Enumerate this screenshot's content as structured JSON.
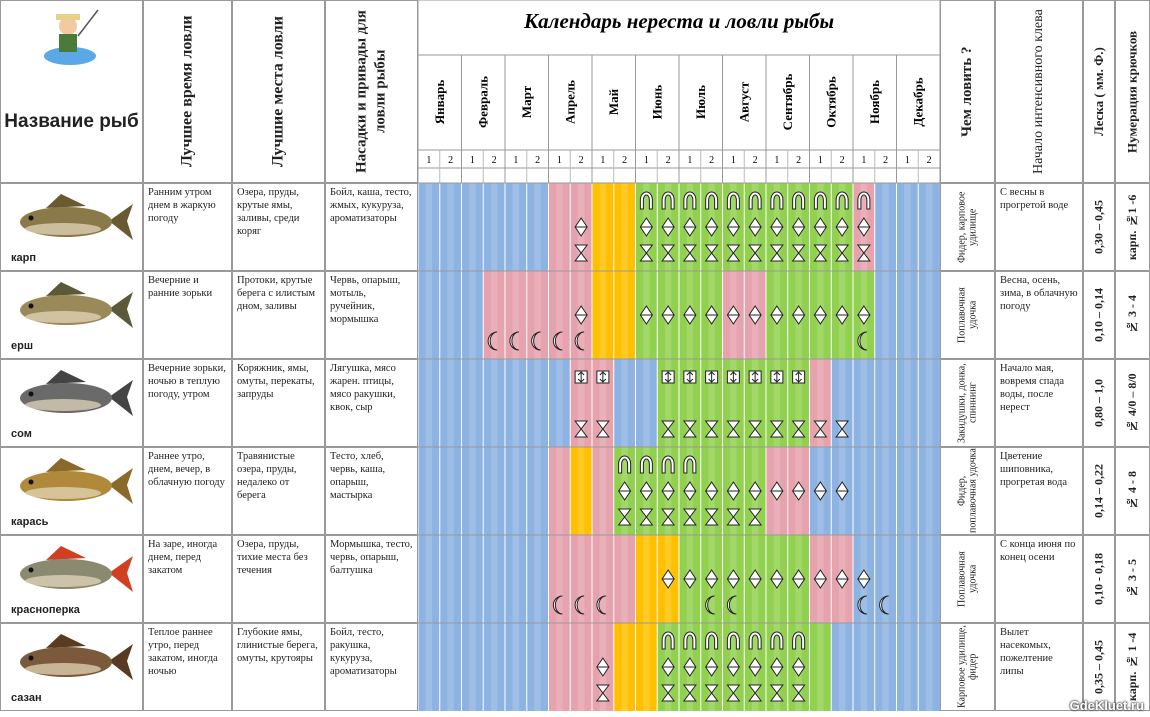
{
  "header": {
    "name_col": "Название рыб",
    "time_col": "Лучшее время ловли",
    "places_col": "Лучшие места ловли",
    "baits_col": "Насадки и привады для ловли рыбы",
    "title": "Календарь нереста и ловли рыбы",
    "months": [
      "Январь",
      "Февраль",
      "Март",
      "Апрель",
      "Май",
      "Июнь",
      "Июль",
      "Август",
      "Сентябрь",
      "Октябрь",
      "Ноябрь",
      "Декабрь"
    ],
    "halves": [
      "1",
      "2"
    ],
    "tackle_col": "Чем ловить ?",
    "start_col": "Начало интенсивного клева",
    "line_col": "Леска ( мм. Ф.)",
    "hooks_col": "Нумерация крючков"
  },
  "palette": {
    "b": "#8db3e2",
    "p": "#e6a3ad",
    "o": "#ffc000",
    "g": "#92d050"
  },
  "fish": [
    {
      "name": "карп",
      "time": "Ранним утром днем в жаркую погоду",
      "places": "Озера, пруды, крутые ямы, заливы, среди коряг",
      "baits": "Бойл, каша, тесто, жмых, кукуруза, ароматизаторы",
      "tackle": "Фидер, карповое удилище",
      "start": "С весны в прогретой воде",
      "line": "0,30 – 0,45",
      "hooks": "карп. №1 -6",
      "cells": "bbbbbbppooggggggggggpbbb",
      "icons": [
        "",
        "",
        "",
        "",
        "",
        "",
        "",
        "DH",
        "",
        "",
        "ADH",
        "ADH",
        "ADH",
        "ADH",
        "ADH",
        "ADH",
        "ADH",
        "ADH",
        "ADH",
        "ADH",
        "ADH",
        "",
        "",
        ""
      ]
    },
    {
      "name": "ерш",
      "time": "Вечерние и ранние зорьки",
      "places": "Протоки, крутые берега с илистым дном, заливы",
      "baits": "Червь, опарыш, мотыль, ручейник, мормышка",
      "tackle": "Поплавочная удочка",
      "start": "Весна, осень, зима, в облачную погоду",
      "line": "0,10 – 0,14",
      "hooks": "№ 3 - 4",
      "cells": "bbbpppppooggggppgggggbbb",
      "icons": [
        "",
        "",
        "",
        "C",
        "C",
        "C",
        "C",
        "DC",
        "",
        "",
        "D",
        "D",
        "D",
        "D",
        "D",
        "D",
        "D",
        "D",
        "D",
        "D",
        "DC",
        "",
        "",
        ""
      ]
    },
    {
      "name": "сом",
      "time": "Вечерние зорьки, ночью в теплую погоду, утром",
      "places": "Коряжник, ямы, омуты, перекаты, запруды",
      "baits": "Лягушка, мясо жарен. птицы, мясо ракушки, квок, сыр",
      "tackle": "Закидушки, донка, спиннинг",
      "start": "Начало мая, вовремя спада воды, после нерест",
      "line": "0,80 – 1,0",
      "hooks": "№ 4/0 – 8/0",
      "cells": "bbbbbbbppbbgggggggpbbbbb",
      "icons": [
        "",
        "",
        "",
        "",
        "",
        "",
        "",
        "RH",
        "RH",
        "",
        "",
        "RH",
        "RH",
        "RH",
        "RH",
        "RH",
        "RH",
        "RH",
        "H",
        "H",
        "",
        "",
        "",
        ""
      ]
    },
    {
      "name": "карась",
      "time": "Раннее утро, днем, вечер, в облачную погоду",
      "places": "Травянистые озера, пруды, недалеко от берега",
      "baits": "Тесто, хлеб, червь, каша, опарыш, мастырка",
      "tackle": "Фидер, поплавочная удочка",
      "start": "Цветение шиповника, прогретая вода",
      "line": "0,14 – 0,22",
      "hooks": "№ 4 - 8",
      "cells": "bbbbbbpopgggggggppbbbbbb",
      "icons": [
        "",
        "",
        "",
        "",
        "",
        "",
        "",
        "",
        "",
        "ADH",
        "ADH",
        "ADH",
        "ADH",
        "DH",
        "DH",
        "DH",
        "D",
        "D",
        "D",
        "D",
        "",
        "",
        "",
        ""
      ]
    },
    {
      "name": "красноперка",
      "time": "На заре, иногда днем, перед закатом",
      "places": "Озера, пруды, тихие места без течения",
      "baits": "Мормышка, тесто, червь, опарыш, балтушка",
      "tackle": "Поплавочная удочка",
      "start": "С конца июня по конец осени",
      "line": "0,10 - 0,18",
      "hooks": "№ 3 - 5",
      "cells": "bbbbbbppppooggggggppbbbb",
      "icons": [
        "",
        "",
        "",
        "",
        "",
        "",
        "C",
        "C",
        "C",
        "",
        "",
        "D",
        "D",
        "DC",
        "DC",
        "D",
        "D",
        "D",
        "D",
        "D",
        "DC",
        "C",
        "",
        ""
      ]
    },
    {
      "name": "сазан",
      "time": "Теплое раннее утро, перед закатом, иногда ночью",
      "places": "Глубокие ямы, глинистые берега, омуты, крутояры",
      "baits": "Бойл, тесто, ракушка, кукуруза, ароматизаторы",
      "tackle": "Карповое удилище, фидер",
      "start": "Вылет насекомых, пожелтение липы",
      "line": "0,35 – 0,45",
      "hooks": "карп. № 1 -4",
      "cells": "bbbbbbpppooggggggggbbbbb",
      "icons": [
        "",
        "",
        "",
        "",
        "",
        "",
        "",
        "",
        "DH",
        "",
        "",
        "ADH",
        "ADH",
        "ADH",
        "ADH",
        "ADH",
        "ADH",
        "ADH",
        "",
        "",
        "",
        "",
        "",
        ""
      ]
    }
  ],
  "watermark": "GdeKluet.ru"
}
